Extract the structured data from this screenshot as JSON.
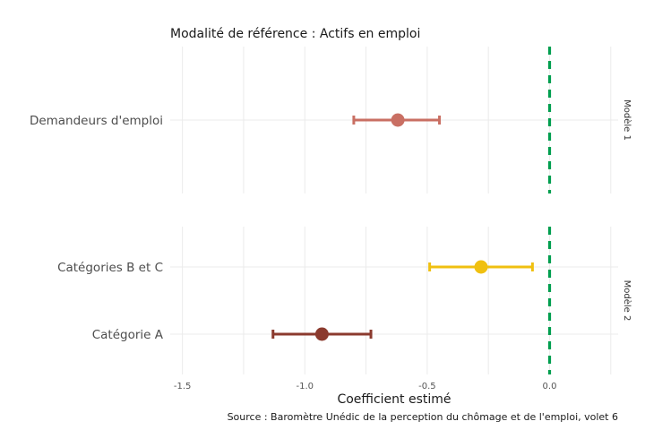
{
  "chart_data": {
    "type": "scatter",
    "subtype": "coefficient-plot with error bars, faceted",
    "title": "Modalité de référence : Actifs en emploi",
    "xlabel": "Coefficient estimé",
    "caption": "Source : Baromètre Unédic de la perception du chômage et de l'emploi, volet 6",
    "xlim": [
      -1.55,
      0.28
    ],
    "x_ticks": [
      -1.5,
      -1.0,
      -0.5,
      0.0
    ],
    "x_tick_labels": [
      "-1.5",
      "-1.0",
      "-0.5",
      "0.0"
    ],
    "reference_line": {
      "x": 0,
      "color": "#009E4F",
      "style": "dashed"
    },
    "grid": true,
    "legend": "none",
    "facets": [
      {
        "label": "Modèle 1",
        "points": [
          {
            "category": "Demandeurs d'emploi",
            "estimate": -0.62,
            "ci_low": -0.8,
            "ci_high": -0.45,
            "color": "#C96F63"
          }
        ]
      },
      {
        "label": "Modèle 2",
        "points": [
          {
            "category": "Catégories B et C",
            "estimate": -0.28,
            "ci_low": -0.49,
            "ci_high": -0.07,
            "color": "#F0C010"
          },
          {
            "category": "Catégorie A",
            "estimate": -0.93,
            "ci_low": -1.13,
            "ci_high": -0.73,
            "color": "#8B3A2E"
          }
        ]
      }
    ]
  }
}
